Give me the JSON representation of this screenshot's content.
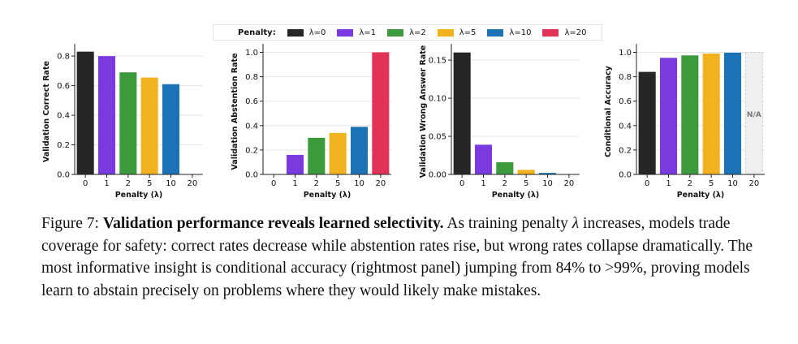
{
  "legend": {
    "title": "Penalty:",
    "items": [
      {
        "label": "λ=0",
        "color": "#262626"
      },
      {
        "label": "λ=1",
        "color": "#7b3ae0"
      },
      {
        "label": "λ=2",
        "color": "#3b9a3b"
      },
      {
        "label": "λ=5",
        "color": "#f2b11f"
      },
      {
        "label": "λ=10",
        "color": "#1b73b5"
      },
      {
        "label": "λ=20",
        "color": "#e13358"
      }
    ]
  },
  "chart_data": [
    {
      "type": "bar",
      "categories": [
        "0",
        "1",
        "2",
        "5",
        "10",
        "20"
      ],
      "values": [
        0.83,
        0.8,
        0.69,
        0.655,
        0.61,
        0.0
      ],
      "xlabel": "Penalty (λ)",
      "ylabel": "Validation Correct Rate",
      "ylim": [
        0,
        0.85
      ],
      "yticks": [
        0.0,
        0.2,
        0.4,
        0.6,
        0.8
      ],
      "ytick_labels": [
        "0.0",
        "0.2",
        "0.4",
        "0.6",
        "0.8"
      ],
      "grid": true
    },
    {
      "type": "bar",
      "categories": [
        "0",
        "1",
        "2",
        "5",
        "10",
        "20"
      ],
      "values": [
        0.0,
        0.16,
        0.3,
        0.34,
        0.39,
        1.0
      ],
      "xlabel": "Penalty (λ)",
      "ylabel": "Validation Abstention Rate",
      "ylim": [
        0,
        1.03
      ],
      "yticks": [
        0.0,
        0.2,
        0.4,
        0.6,
        0.8,
        1.0
      ],
      "ytick_labels": [
        "0.0",
        "0.2",
        "0.4",
        "0.6",
        "0.8",
        "1.0"
      ],
      "grid": true
    },
    {
      "type": "bar",
      "categories": [
        "0",
        "1",
        "2",
        "5",
        "10",
        "20"
      ],
      "values": [
        0.16,
        0.039,
        0.016,
        0.006,
        0.002,
        0.0
      ],
      "xlabel": "Penalty (λ)",
      "ylabel": "Validation Wrong Answer Rate",
      "ylim": [
        0,
        0.165
      ],
      "yticks": [
        0.0,
        0.05,
        0.1,
        0.15
      ],
      "ytick_labels": [
        "0.00",
        "0.05",
        "0.10",
        "0.15"
      ],
      "grid": true
    },
    {
      "type": "bar",
      "categories": [
        "0",
        "1",
        "2",
        "5",
        "10",
        "20"
      ],
      "values": [
        0.84,
        0.955,
        0.975,
        0.99,
        0.997,
        1.0
      ],
      "na_index": 5,
      "na_label": "N/A",
      "xlabel": "Penalty (λ)",
      "ylabel": "Conditional Accuracy",
      "ylim": [
        0,
        1.03
      ],
      "yticks": [
        0.0,
        0.2,
        0.4,
        0.6,
        0.8,
        1.0
      ],
      "ytick_labels": [
        "0.0",
        "0.2",
        "0.4",
        "0.6",
        "0.8",
        "1.0"
      ],
      "grid": true
    }
  ],
  "caption": {
    "label": "Figure 7:",
    "bold": "Validation performance reveals learned selectivity.",
    "t1": "As training penalty",
    "symbol": "λ",
    "t2": "increases, models trade coverage for safety: correct rates decrease while abstention rates rise, but wrong rates collapse dramatically. The most informative insight is conditional accuracy (rightmost panel) jumping from 84% to >99%, proving models learn to abstain precisely on problems where they would likely make mistakes."
  }
}
